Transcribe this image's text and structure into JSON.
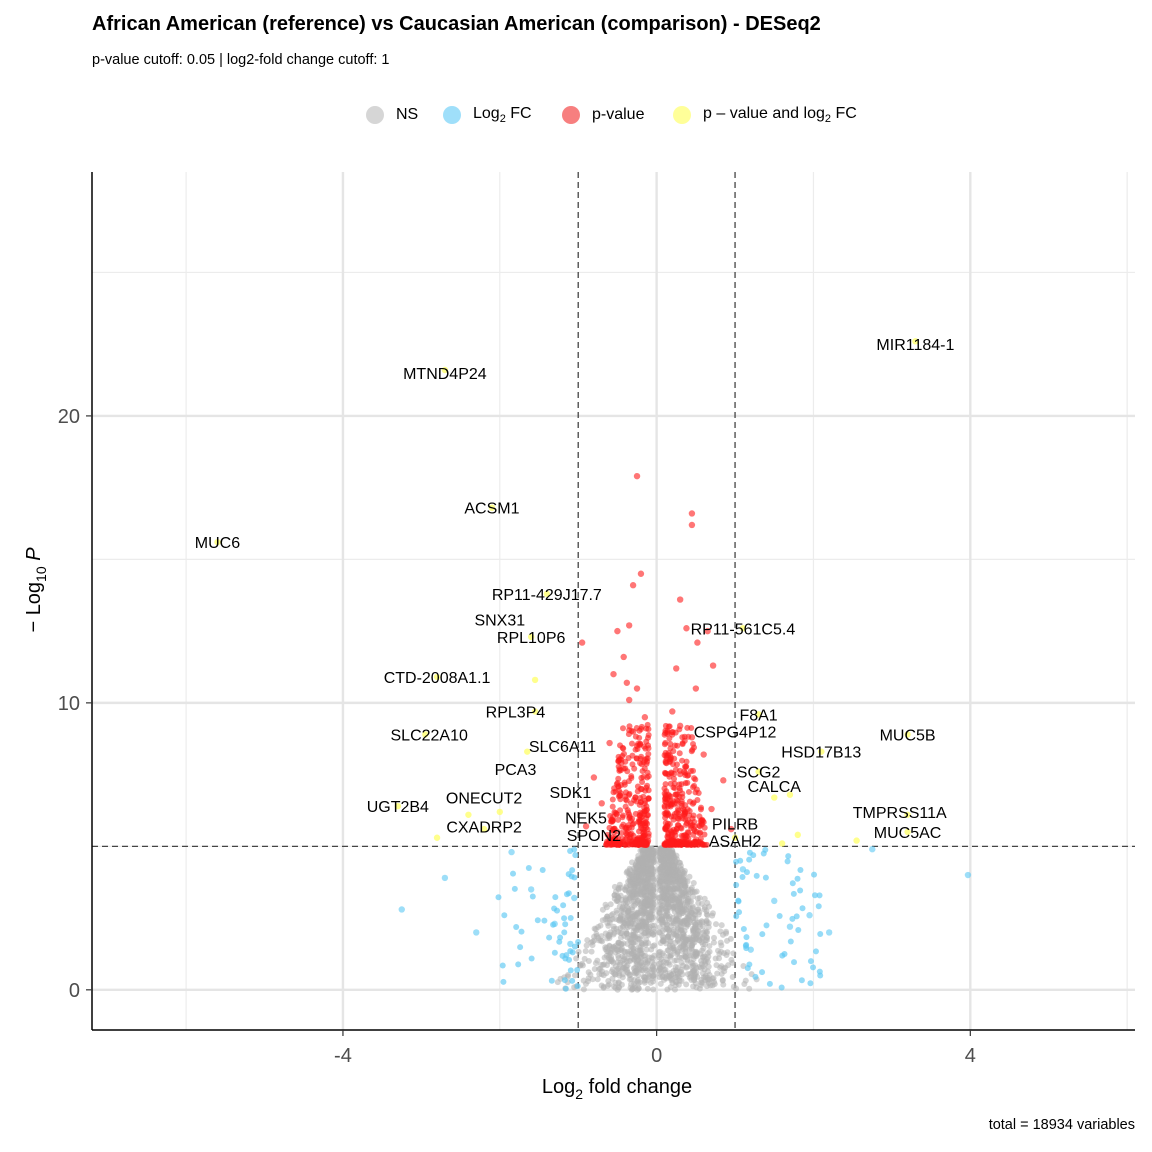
{
  "chart_data": {
    "type": "scatter",
    "title": "African American (reference) vs Caucasian American (comparison) - DESeq2",
    "subtitle": "p-value cutoff: 0.05 | log2-fold change cutoff: 1",
    "caption": "total = 18934 variables",
    "xlabel": "Log2 fold change",
    "ylabel": "-Log10 P",
    "xlim": [
      -7.2,
      6.1
    ],
    "ylim": [
      -1.4,
      28.5
    ],
    "xticks": [
      -4,
      0,
      4
    ],
    "xtick_labels": [
      "-4",
      "0",
      "4"
    ],
    "yticks": [
      0,
      10,
      20
    ],
    "ytick_labels": [
      "0",
      "10",
      "20"
    ],
    "grid": true,
    "legend_position": "top",
    "cutoff_lines": {
      "x": [
        -1,
        1
      ],
      "y": 5.0
    },
    "colors": {
      "NS": "#b0b0b0",
      "Log2 FC": "#5cc8f3",
      "p-value": "#ff1a1a",
      "p - value and log2 FC": "#ffff66"
    },
    "legend": [
      {
        "name": "NS",
        "color": "#b0b0b0"
      },
      {
        "name": "Log2 FC",
        "color": "#5cc8f3"
      },
      {
        "name": "p-value",
        "color": "#ff1a1a"
      },
      {
        "name": "p - value and log2 FC",
        "color": "#ffff66"
      }
    ],
    "labeled_points": [
      {
        "label": "MIR1184-1",
        "x": 3.3,
        "y": 22.5
      },
      {
        "label": "MTND4P24",
        "x": -2.7,
        "y": 21.5
      },
      {
        "label": "ACSM1",
        "x": -2.1,
        "y": 16.8
      },
      {
        "label": "MUC6",
        "x": -5.6,
        "y": 15.6
      },
      {
        "label": "RP11-429J17.7",
        "x": -1.4,
        "y": 13.8
      },
      {
        "label": "SNX31",
        "x": -2.0,
        "y": 12.9
      },
      {
        "label": "RPL10P6",
        "x": -1.6,
        "y": 12.3
      },
      {
        "label": "RP11-561C5.4",
        "x": 1.1,
        "y": 12.6
      },
      {
        "label": "CTD-2008A1.1",
        "x": -2.8,
        "y": 10.9
      },
      {
        "label": "RPL3P4",
        "x": -1.8,
        "y": 9.7
      },
      {
        "label": "F8A1",
        "x": 1.3,
        "y": 9.6
      },
      {
        "label": "CSPG4P12",
        "x": 1.0,
        "y": 9.0
      },
      {
        "label": "SLC22A10",
        "x": -2.9,
        "y": 8.9
      },
      {
        "label": "MUC5B",
        "x": 3.2,
        "y": 8.9
      },
      {
        "label": "SLC6A11",
        "x": -1.2,
        "y": 8.5
      },
      {
        "label": "HSD17B13",
        "x": 2.1,
        "y": 8.3
      },
      {
        "label": "PCA3",
        "x": -1.8,
        "y": 7.7
      },
      {
        "label": "SCG2",
        "x": 1.3,
        "y": 7.6
      },
      {
        "label": "CALCA",
        "x": 1.5,
        "y": 7.1
      },
      {
        "label": "SDK1",
        "x": -1.1,
        "y": 6.9
      },
      {
        "label": "ONECUT2",
        "x": -2.2,
        "y": 6.7
      },
      {
        "label": "UGT2B4",
        "x": -3.3,
        "y": 6.4
      },
      {
        "label": "TMPRSS11A",
        "x": 3.1,
        "y": 6.2
      },
      {
        "label": "NEK5",
        "x": -0.9,
        "y": 6.0
      },
      {
        "label": "CXADRP2",
        "x": -2.2,
        "y": 5.7
      },
      {
        "label": "PILRB",
        "x": 1.0,
        "y": 5.8
      },
      {
        "label": "SPON2",
        "x": -0.8,
        "y": 5.4
      },
      {
        "label": "MUC5AC",
        "x": 3.2,
        "y": 5.5
      },
      {
        "label": "ASAH2",
        "x": 1.0,
        "y": 5.2
      }
    ],
    "points": [
      {
        "x": -0.25,
        "y": 17.9,
        "group": "p-value"
      },
      {
        "x": 0.45,
        "y": 16.6,
        "group": "p-value"
      },
      {
        "x": 0.45,
        "y": 16.2,
        "group": "p-value"
      },
      {
        "x": -0.2,
        "y": 14.5,
        "group": "p-value"
      },
      {
        "x": -0.3,
        "y": 14.1,
        "group": "p-value"
      },
      {
        "x": 0.3,
        "y": 13.6,
        "group": "p-value"
      },
      {
        "x": -0.35,
        "y": 12.7,
        "group": "p-value"
      },
      {
        "x": -0.5,
        "y": 12.5,
        "group": "p-value"
      },
      {
        "x": 0.38,
        "y": 12.6,
        "group": "p-value"
      },
      {
        "x": 0.52,
        "y": 12.1,
        "group": "p-value"
      },
      {
        "x": 0.65,
        "y": 12.5,
        "group": "p-value"
      },
      {
        "x": -0.95,
        "y": 12.1,
        "group": "p-value"
      },
      {
        "x": -0.42,
        "y": 11.6,
        "group": "p-value"
      },
      {
        "x": 0.25,
        "y": 11.2,
        "group": "p-value"
      },
      {
        "x": 0.72,
        "y": 11.3,
        "group": "p-value"
      },
      {
        "x": -0.55,
        "y": 11.0,
        "group": "p-value"
      },
      {
        "x": -0.38,
        "y": 10.7,
        "group": "p-value"
      },
      {
        "x": 0.5,
        "y": 10.5,
        "group": "p-value"
      },
      {
        "x": -0.25,
        "y": 10.5,
        "group": "p-value"
      },
      {
        "x": -0.35,
        "y": 10.1,
        "group": "p-value"
      },
      {
        "x": 0.2,
        "y": 9.7,
        "group": "p-value"
      },
      {
        "x": -0.15,
        "y": 9.5,
        "group": "p-value"
      },
      {
        "x": 0.3,
        "y": 9.2,
        "group": "p-value"
      },
      {
        "x": -0.3,
        "y": 9.0,
        "group": "p-value"
      },
      {
        "x": 0.45,
        "y": 8.8,
        "group": "p-value"
      },
      {
        "x": -0.6,
        "y": 8.6,
        "group": "p-value"
      },
      {
        "x": 0.6,
        "y": 8.2,
        "group": "p-value"
      },
      {
        "x": -0.45,
        "y": 7.9,
        "group": "p-value"
      },
      {
        "x": 0.35,
        "y": 7.6,
        "group": "p-value"
      },
      {
        "x": -0.8,
        "y": 7.4,
        "group": "p-value"
      },
      {
        "x": 0.85,
        "y": 7.3,
        "group": "p-value"
      },
      {
        "x": -0.2,
        "y": 7.0,
        "group": "p-value"
      },
      {
        "x": 0.25,
        "y": 6.8,
        "group": "p-value"
      },
      {
        "x": -0.7,
        "y": 6.5,
        "group": "p-value"
      },
      {
        "x": 0.7,
        "y": 6.3,
        "group": "p-value"
      },
      {
        "x": -0.35,
        "y": 6.1,
        "group": "p-value"
      },
      {
        "x": 0.4,
        "y": 5.9,
        "group": "p-value"
      },
      {
        "x": -0.9,
        "y": 5.7,
        "group": "p-value"
      },
      {
        "x": 0.95,
        "y": 5.6,
        "group": "p-value"
      },
      {
        "x": -0.15,
        "y": 5.4,
        "group": "p-value"
      },
      {
        "x": 0.15,
        "y": 5.3,
        "group": "p-value"
      },
      {
        "x": -0.55,
        "y": 5.2,
        "group": "p-value"
      },
      {
        "x": 0.55,
        "y": 5.15,
        "group": "p-value"
      },
      {
        "x": 3.97,
        "y": 4.0,
        "group": "Log2 FC"
      },
      {
        "x": 2.75,
        "y": 4.9,
        "group": "Log2 FC"
      },
      {
        "x": -3.25,
        "y": 2.8,
        "group": "Log2 FC"
      },
      {
        "x": -2.7,
        "y": 3.9,
        "group": "Log2 FC"
      },
      {
        "x": -2.3,
        "y": 2.0,
        "group": "Log2 FC"
      },
      {
        "x": 2.2,
        "y": 2.0,
        "group": "Log2 FC"
      },
      {
        "x": 1.95,
        "y": 2.6,
        "group": "Log2 FC"
      },
      {
        "x": -1.85,
        "y": 4.8,
        "group": "Log2 FC"
      },
      {
        "x": -1.6,
        "y": 3.5,
        "group": "Log2 FC"
      },
      {
        "x": -1.3,
        "y": 2.3,
        "group": "Log2 FC"
      },
      {
        "x": -1.1,
        "y": 1.6,
        "group": "Log2 FC"
      },
      {
        "x": 1.2,
        "y": 1.4,
        "group": "Log2 FC"
      },
      {
        "x": 1.5,
        "y": 3.1,
        "group": "Log2 FC"
      },
      {
        "x": 1.7,
        "y": 2.2,
        "group": "Log2 FC"
      },
      {
        "x": 1.1,
        "y": 4.2,
        "group": "Log2 FC"
      },
      {
        "x": -1.05,
        "y": 3.2,
        "group": "Log2 FC"
      },
      {
        "x": 3.3,
        "y": 22.6,
        "group": "p - value and log2 FC"
      },
      {
        "x": -2.7,
        "y": 21.6,
        "group": "p - value and log2 FC"
      },
      {
        "x": -2.1,
        "y": 16.8,
        "group": "p - value and log2 FC"
      },
      {
        "x": -5.6,
        "y": 15.6,
        "group": "p - value and log2 FC"
      },
      {
        "x": -1.4,
        "y": 13.8,
        "group": "p - value and log2 FC"
      },
      {
        "x": -1.6,
        "y": 12.3,
        "group": "p - value and log2 FC"
      },
      {
        "x": 1.1,
        "y": 12.6,
        "group": "p - value and log2 FC"
      },
      {
        "x": -1.55,
        "y": 10.8,
        "group": "p - value and log2 FC"
      },
      {
        "x": -2.8,
        "y": 10.9,
        "group": "p - value and log2 FC"
      },
      {
        "x": -1.55,
        "y": 9.7,
        "group": "p - value and log2 FC"
      },
      {
        "x": 1.3,
        "y": 9.6,
        "group": "p - value and log2 FC"
      },
      {
        "x": 3.2,
        "y": 8.9,
        "group": "p - value and log2 FC"
      },
      {
        "x": -2.95,
        "y": 8.9,
        "group": "p - value and log2 FC"
      },
      {
        "x": -1.65,
        "y": 8.3,
        "group": "p - value and log2 FC"
      },
      {
        "x": 2.1,
        "y": 8.3,
        "group": "p - value and log2 FC"
      },
      {
        "x": 1.3,
        "y": 7.6,
        "group": "p - value and log2 FC"
      },
      {
        "x": 1.5,
        "y": 6.7,
        "group": "p - value and log2 FC"
      },
      {
        "x": 1.7,
        "y": 6.8,
        "group": "p - value and log2 FC"
      },
      {
        "x": -3.3,
        "y": 6.4,
        "group": "p - value and log2 FC"
      },
      {
        "x": -2.4,
        "y": 6.1,
        "group": "p - value and log2 FC"
      },
      {
        "x": -2.0,
        "y": 6.2,
        "group": "p - value and log2 FC"
      },
      {
        "x": 3.2,
        "y": 6.1,
        "group": "p - value and log2 FC"
      },
      {
        "x": -2.2,
        "y": 5.6,
        "group": "p - value and log2 FC"
      },
      {
        "x": -2.8,
        "y": 5.3,
        "group": "p - value and log2 FC"
      },
      {
        "x": 3.2,
        "y": 5.5,
        "group": "p - value and log2 FC"
      },
      {
        "x": 2.55,
        "y": 5.2,
        "group": "p - value and log2 FC"
      },
      {
        "x": 1.8,
        "y": 5.4,
        "group": "p - value and log2 FC"
      },
      {
        "x": 1.0,
        "y": 5.3,
        "group": "p - value and log2 FC"
      },
      {
        "x": 1.6,
        "y": 5.1,
        "group": "p - value and log2 FC"
      }
    ]
  }
}
